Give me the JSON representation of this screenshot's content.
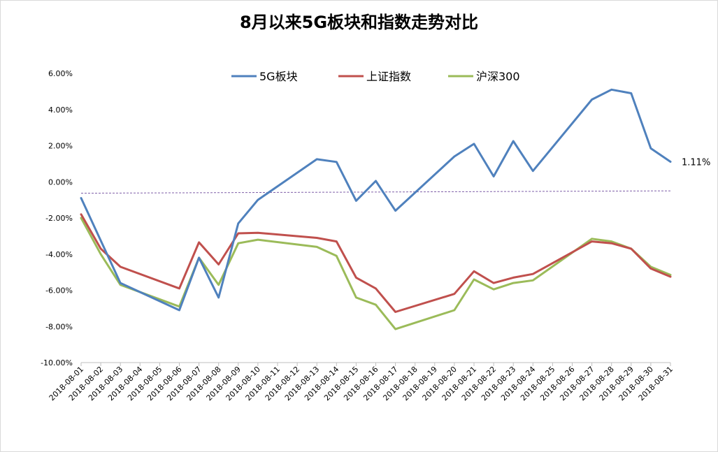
{
  "chart_data": {
    "type": "line",
    "title": "8月以来5G板块和指数走势对比",
    "xlabel": "",
    "ylabel": "",
    "ylim": [
      -0.1,
      0.06
    ],
    "y_ticks": [
      "6.00%",
      "4.00%",
      "2.00%",
      "0.00%",
      "-2.00%",
      "-4.00%",
      "-6.00%",
      "-8.00%",
      "-10.00%"
    ],
    "y_tick_values": [
      0.06,
      0.04,
      0.02,
      0.0,
      -0.02,
      -0.04,
      -0.06,
      -0.08,
      -0.1
    ],
    "categories": [
      "2018-08-01",
      "2018-08-02",
      "2018-08-03",
      "2018-08-04",
      "2018-08-05",
      "2018-08-06",
      "2018-08-07",
      "2018-08-08",
      "2018-08-09",
      "2018-08-10",
      "2018-08-11",
      "2018-08-12",
      "2018-08-13",
      "2018-08-14",
      "2018-08-15",
      "2018-08-16",
      "2018-08-17",
      "2018-08-18",
      "2018-08-19",
      "2018-08-20",
      "2018-08-21",
      "2018-08-22",
      "2018-08-23",
      "2018-08-24",
      "2018-08-25",
      "2018-08-26",
      "2018-08-27",
      "2018-08-28",
      "2018-08-29",
      "2018-08-30",
      "2018-08-31"
    ],
    "legend_position": "top",
    "grid": false,
    "series": [
      {
        "name": "5G板块",
        "color": "#4f81bd",
        "points": [
          [
            "2018-08-01",
            -0.009
          ],
          [
            "2018-08-03",
            -0.056
          ],
          [
            "2018-08-06",
            -0.071
          ],
          [
            "2018-08-07",
            -0.042
          ],
          [
            "2018-08-08",
            -0.064
          ],
          [
            "2018-08-09",
            -0.023
          ],
          [
            "2018-08-10",
            -0.01
          ],
          [
            "2018-08-13",
            0.0125
          ],
          [
            "2018-08-14",
            0.011
          ],
          [
            "2018-08-15",
            -0.0105
          ],
          [
            "2018-08-16",
            0.0005
          ],
          [
            "2018-08-17",
            -0.016
          ],
          [
            "2018-08-20",
            0.014
          ],
          [
            "2018-08-21",
            0.021
          ],
          [
            "2018-08-22",
            0.003
          ],
          [
            "2018-08-23",
            0.0225
          ],
          [
            "2018-08-24",
            0.006
          ],
          [
            "2018-08-27",
            0.0455
          ],
          [
            "2018-08-28",
            0.051
          ],
          [
            "2018-08-29",
            0.049
          ],
          [
            "2018-08-30",
            0.0185
          ],
          [
            "2018-08-31",
            0.0111
          ]
        ]
      },
      {
        "name": "上证指数",
        "color": "#c0504d",
        "points": [
          [
            "2018-08-01",
            -0.018
          ],
          [
            "2018-08-02",
            -0.037
          ],
          [
            "2018-08-03",
            -0.047
          ],
          [
            "2018-08-06",
            -0.059
          ],
          [
            "2018-08-07",
            -0.0335
          ],
          [
            "2018-08-08",
            -0.0457
          ],
          [
            "2018-08-09",
            -0.0285
          ],
          [
            "2018-08-10",
            -0.0282
          ],
          [
            "2018-08-13",
            -0.031
          ],
          [
            "2018-08-14",
            -0.033
          ],
          [
            "2018-08-15",
            -0.053
          ],
          [
            "2018-08-16",
            -0.059
          ],
          [
            "2018-08-17",
            -0.072
          ],
          [
            "2018-08-20",
            -0.062
          ],
          [
            "2018-08-21",
            -0.0495
          ],
          [
            "2018-08-22",
            -0.056
          ],
          [
            "2018-08-23",
            -0.053
          ],
          [
            "2018-08-24",
            -0.051
          ],
          [
            "2018-08-27",
            -0.033
          ],
          [
            "2018-08-28",
            -0.034
          ],
          [
            "2018-08-29",
            -0.037
          ],
          [
            "2018-08-30",
            -0.048
          ],
          [
            "2018-08-31",
            -0.0525
          ]
        ]
      },
      {
        "name": "沪深300",
        "color": "#9bbb59",
        "points": [
          [
            "2018-08-01",
            -0.02
          ],
          [
            "2018-08-02",
            -0.04
          ],
          [
            "2018-08-03",
            -0.057
          ],
          [
            "2018-08-06",
            -0.069
          ],
          [
            "2018-08-07",
            -0.042
          ],
          [
            "2018-08-08",
            -0.057
          ],
          [
            "2018-08-09",
            -0.034
          ],
          [
            "2018-08-10",
            -0.032
          ],
          [
            "2018-08-13",
            -0.036
          ],
          [
            "2018-08-14",
            -0.041
          ],
          [
            "2018-08-15",
            -0.064
          ],
          [
            "2018-08-16",
            -0.068
          ],
          [
            "2018-08-17",
            -0.0815
          ],
          [
            "2018-08-20",
            -0.071
          ],
          [
            "2018-08-21",
            -0.054
          ],
          [
            "2018-08-22",
            -0.0595
          ],
          [
            "2018-08-23",
            -0.056
          ],
          [
            "2018-08-24",
            -0.0545
          ],
          [
            "2018-08-27",
            -0.0315
          ],
          [
            "2018-08-28",
            -0.033
          ],
          [
            "2018-08-29",
            -0.037
          ],
          [
            "2018-08-30",
            -0.047
          ],
          [
            "2018-08-31",
            -0.0515
          ]
        ]
      }
    ],
    "reference_line": {
      "style": "dashed",
      "color": "#7f5fa8",
      "from": [
        "2018-08-01",
        -0.0063
      ],
      "to": [
        "2018-08-31",
        -0.005
      ]
    },
    "annotation": {
      "text": "1.11%",
      "at": [
        "2018-08-31",
        0.0111
      ]
    }
  }
}
